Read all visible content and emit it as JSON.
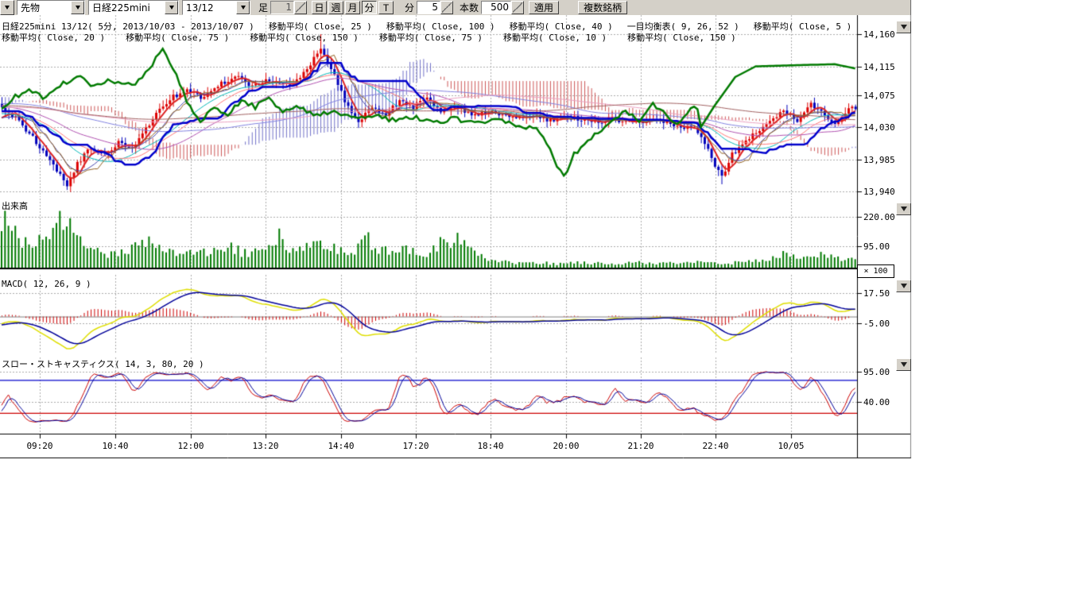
{
  "toolbar": {
    "instrument_type": "先物",
    "symbol": "日経225mini",
    "contract": "13/12",
    "bar_label": "足",
    "bar_value": "1",
    "period_buttons": [
      "日",
      "週",
      "月",
      "分",
      "T"
    ],
    "selected_period": "分",
    "minute_label": "分",
    "minute_value": "5",
    "count_label": "本数",
    "count_value": "500",
    "apply_button": "適用",
    "multi_symbol_button": "複数銘柄"
  },
  "legend": {
    "row1": [
      "日経225mini 13/12( 5分, 2013/10/03 - 2013/10/07 )",
      "移動平均( Close, 25 )",
      "移動平均( Close, 100 )",
      "移動平均( Close, 40 )",
      "一目均衡表( 9, 26, 52 )",
      "移動平均( Close, 5 )"
    ],
    "row2": [
      "移動平均( Close, 20 )",
      "移動平均( Close, 75 )",
      "移動平均( Close, 150 )",
      "移動平均( Close, 75 )",
      "移動平均( Close, 10 )",
      "移動平均( Close, 150 )"
    ]
  },
  "panels": {
    "volume_title": "出来高",
    "volume_multiplier": "× 100",
    "macd_title": "MACD( 12, 26, 9 )",
    "stoch_title": "スロー・ストキャスティクス( 14, 3, 80, 20 )"
  },
  "axes": {
    "price_ticks": [
      "14,160",
      "14,115",
      "14,075",
      "14,030",
      "13,985",
      "13,940"
    ],
    "volume_ticks": [
      "220.00",
      "95.00"
    ],
    "macd_ticks": [
      "17.50",
      "-5.00"
    ],
    "stoch_ticks": [
      "95.00",
      "40.00"
    ],
    "time_ticks": [
      "09:20",
      "10:40",
      "12:00",
      "13:20",
      "14:40",
      "17:20",
      "18:40",
      "20:00",
      "21:20",
      "22:40",
      "10/05"
    ]
  },
  "chart_data": {
    "type": "candlestick_with_indicators",
    "symbol": "日経225mini",
    "contract": "13/12",
    "interval": "5分",
    "date_range": "2013/10/03 - 2013/10/07",
    "bars": 250,
    "price_axis": {
      "ticks": [
        14160,
        14115,
        14075,
        14030,
        13985,
        13940
      ]
    },
    "volume_axis": {
      "ticks": [
        220,
        95
      ],
      "multiplier": 100
    },
    "macd_axis": {
      "ticks": [
        17.5,
        -5
      ],
      "params": [
        12,
        26,
        9
      ]
    },
    "stoch_axis": {
      "ticks": [
        95,
        40
      ],
      "params": [
        14,
        3,
        80,
        20
      ],
      "upper_band": 80,
      "lower_band": 20
    },
    "close_waypoints": [
      [
        0,
        14058
      ],
      [
        4,
        14042
      ],
      [
        8,
        14020
      ],
      [
        12,
        13998
      ],
      [
        16,
        13968
      ],
      [
        19,
        13948
      ],
      [
        22,
        13978
      ],
      [
        26,
        14002
      ],
      [
        30,
        13990
      ],
      [
        34,
        14008
      ],
      [
        38,
        14002
      ],
      [
        42,
        14028
      ],
      [
        46,
        14055
      ],
      [
        50,
        14072
      ],
      [
        54,
        14082
      ],
      [
        58,
        14072
      ],
      [
        63,
        14088
      ],
      [
        68,
        14102
      ],
      [
        72,
        14088
      ],
      [
        77,
        14096
      ],
      [
        82,
        14088
      ],
      [
        86,
        14094
      ],
      [
        90,
        14118
      ],
      [
        93,
        14142
      ],
      [
        96,
        14112
      ],
      [
        100,
        14068
      ],
      [
        104,
        14038
      ],
      [
        108,
        14058
      ],
      [
        112,
        14048
      ],
      [
        116,
        14068
      ],
      [
        120,
        14058
      ],
      [
        124,
        14072
      ],
      [
        128,
        14052
      ],
      [
        133,
        14058
      ],
      [
        138,
        14046
      ],
      [
        143,
        14052
      ],
      [
        148,
        14042
      ],
      [
        154,
        14046
      ],
      [
        160,
        14040
      ],
      [
        166,
        14044
      ],
      [
        172,
        14036
      ],
      [
        178,
        14042
      ],
      [
        184,
        14034
      ],
      [
        190,
        14040
      ],
      [
        196,
        14032
      ],
      [
        202,
        14030
      ],
      [
        205,
        14008
      ],
      [
        208,
        13976
      ],
      [
        210,
        13960
      ],
      [
        213,
        13992
      ],
      [
        216,
        14006
      ],
      [
        220,
        14022
      ],
      [
        224,
        14036
      ],
      [
        228,
        14052
      ],
      [
        232,
        14040
      ],
      [
        236,
        14062
      ],
      [
        240,
        14046
      ],
      [
        243,
        14032
      ],
      [
        246,
        14052
      ],
      [
        249,
        14058
      ]
    ],
    "volume_waypoints": [
      [
        0,
        185
      ],
      [
        2,
        228
      ],
      [
        4,
        140
      ],
      [
        6,
        110
      ],
      [
        9,
        95
      ],
      [
        12,
        120
      ],
      [
        15,
        150
      ],
      [
        17,
        205
      ],
      [
        19,
        215
      ],
      [
        21,
        150
      ],
      [
        24,
        95
      ],
      [
        28,
        70
      ],
      [
        32,
        62
      ],
      [
        36,
        70
      ],
      [
        40,
        95
      ],
      [
        44,
        118
      ],
      [
        46,
        90
      ],
      [
        50,
        68
      ],
      [
        54,
        60
      ],
      [
        58,
        78
      ],
      [
        62,
        68
      ],
      [
        66,
        110
      ],
      [
        70,
        65
      ],
      [
        74,
        72
      ],
      [
        78,
        100
      ],
      [
        81,
        145
      ],
      [
        84,
        90
      ],
      [
        88,
        78
      ],
      [
        92,
        118
      ],
      [
        95,
        95
      ],
      [
        99,
        70
      ],
      [
        103,
        62
      ],
      [
        106,
        165
      ],
      [
        109,
        85
      ],
      [
        113,
        70
      ],
      [
        117,
        88
      ],
      [
        121,
        72
      ],
      [
        125,
        60
      ],
      [
        128,
        115
      ],
      [
        131,
        88
      ],
      [
        135,
        150
      ],
      [
        138,
        80
      ],
      [
        141,
        48
      ],
      [
        145,
        30
      ],
      [
        150,
        22
      ],
      [
        156,
        26
      ],
      [
        162,
        20
      ],
      [
        168,
        28
      ],
      [
        174,
        22
      ],
      [
        180,
        20
      ],
      [
        186,
        26
      ],
      [
        192,
        20
      ],
      [
        198,
        24
      ],
      [
        204,
        30
      ],
      [
        208,
        26
      ],
      [
        212,
        22
      ],
      [
        216,
        28
      ],
      [
        220,
        32
      ],
      [
        224,
        42
      ],
      [
        228,
        62
      ],
      [
        232,
        52
      ],
      [
        236,
        46
      ],
      [
        240,
        60
      ],
      [
        243,
        42
      ],
      [
        246,
        36
      ],
      [
        249,
        46
      ]
    ],
    "chikou_extension_waypoints": [
      [
        204,
        14030
      ],
      [
        208,
        14060
      ],
      [
        214,
        14100
      ],
      [
        220,
        14115
      ],
      [
        243,
        14118
      ],
      [
        249,
        14112
      ]
    ],
    "extremes": [
      {
        "index": 19,
        "low": 13942
      },
      {
        "index": 93,
        "high": 14160
      },
      {
        "index": 210,
        "low": 13950
      }
    ],
    "moving_averages": [
      {
        "period": 5,
        "color": "#dd2222",
        "width": 2
      },
      {
        "period": 10,
        "color": "#4444aa",
        "width": 1
      },
      {
        "period": 20,
        "color": "#00b7b7",
        "width": 1
      },
      {
        "period": 25,
        "color": "#ff7777",
        "width": 1
      },
      {
        "period": 40,
        "color": "#b050b0",
        "width": 1
      },
      {
        "period": 75,
        "color": "#8080e0",
        "width": 1
      },
      {
        "period": 100,
        "color": "#eaa0c0",
        "width": 1
      },
      {
        "period": 150,
        "color": "#a06060",
        "width": 1
      }
    ],
    "ichimoku": {
      "tenkan": 9,
      "kijun": 26,
      "senkou": 52,
      "tenkan_color": "#906020",
      "kijun_color": "#0000cc",
      "chikou_color": "#007a00",
      "cloud_bear": "#cc5555",
      "cloud_bull": "#7070c8"
    },
    "colors": {
      "up": "#dd0000",
      "down": "#0000bb",
      "volume": "#007a00",
      "macd": "#dede00",
      "signal": "#000099",
      "hist": "#cc0000",
      "grid": "#aaaaaa",
      "axis": "#000000",
      "zero": "#808080",
      "band_upper": "#0000cc",
      "band_lower": "#cc0000"
    }
  }
}
